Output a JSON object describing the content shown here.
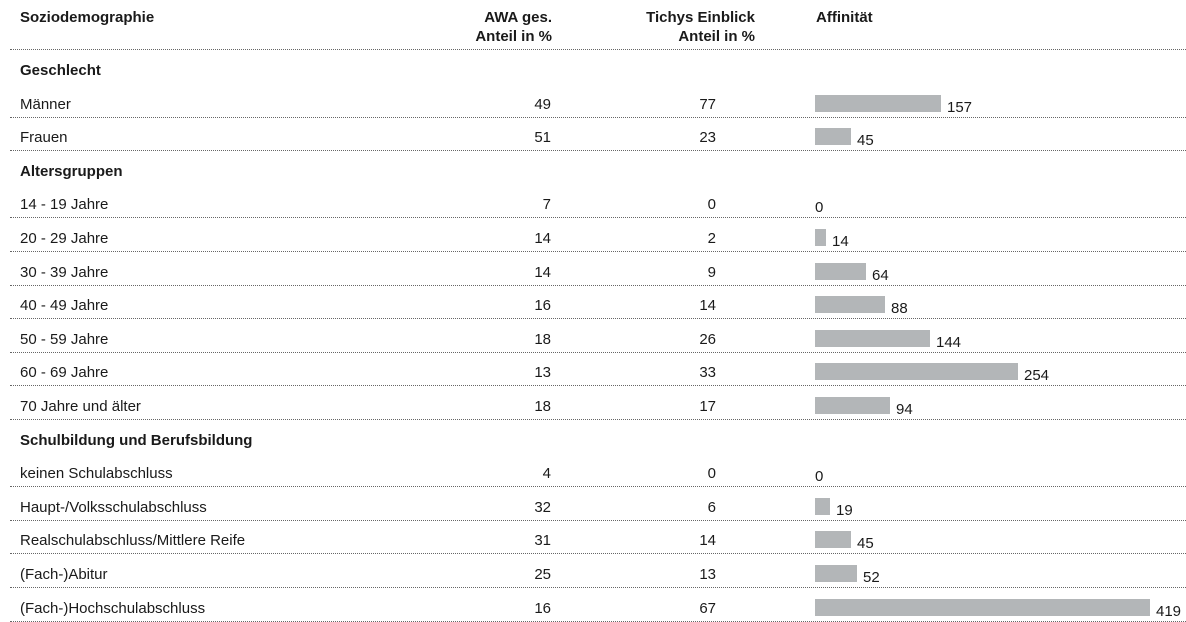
{
  "header": {
    "label": "Soziodemographie",
    "awa": [
      "AWA ges.",
      "Anteil in %"
    ],
    "te": [
      "Tichys Einblick",
      "Anteil in %"
    ],
    "aff": "Affinität"
  },
  "rows": [
    {
      "type": "section",
      "label": "Geschlecht"
    },
    {
      "type": "data",
      "label": "Männer",
      "awa": "49",
      "te": "77",
      "aff": 157
    },
    {
      "type": "data",
      "label": "Frauen",
      "awa": "51",
      "te": "23",
      "aff": 45
    },
    {
      "type": "section",
      "label": "Altersgruppen"
    },
    {
      "type": "data",
      "label": "14 - 19 Jahre",
      "awa": "7",
      "te": "0",
      "aff": 0
    },
    {
      "type": "data",
      "label": "20 - 29 Jahre",
      "awa": "14",
      "te": "2",
      "aff": 14
    },
    {
      "type": "data",
      "label": "30 - 39 Jahre",
      "awa": "14",
      "te": "9",
      "aff": 64
    },
    {
      "type": "data",
      "label": "40 - 49 Jahre",
      "awa": "16",
      "te": "14",
      "aff": 88
    },
    {
      "type": "data",
      "label": "50 - 59 Jahre",
      "awa": "18",
      "te": "26",
      "aff": 144
    },
    {
      "type": "data",
      "label": "60 - 69 Jahre",
      "awa": "13",
      "te": "33",
      "aff": 254
    },
    {
      "type": "data",
      "label": "70 Jahre und älter",
      "awa": "18",
      "te": "17",
      "aff": 94
    },
    {
      "type": "section",
      "label": "Schulbildung und Berufsbildung"
    },
    {
      "type": "data",
      "label": "keinen Schulabschluss",
      "awa": "4",
      "te": "0",
      "aff": 0
    },
    {
      "type": "data",
      "label": "Haupt-/Volksschulabschluss",
      "awa": "32",
      "te": "6",
      "aff": 19
    },
    {
      "type": "data",
      "label": "Realschulabschluss/Mittlere Reife",
      "awa": "31",
      "te": "14",
      "aff": 45
    },
    {
      "type": "data",
      "label": "(Fach-)Abitur",
      "awa": "25",
      "te": "13",
      "aff": 52
    },
    {
      "type": "data",
      "label": "(Fach-)Hochschulabschluss",
      "awa": "16",
      "te": "67",
      "aff": 419
    }
  ],
  "bar_color": "#b3b6b8"
}
